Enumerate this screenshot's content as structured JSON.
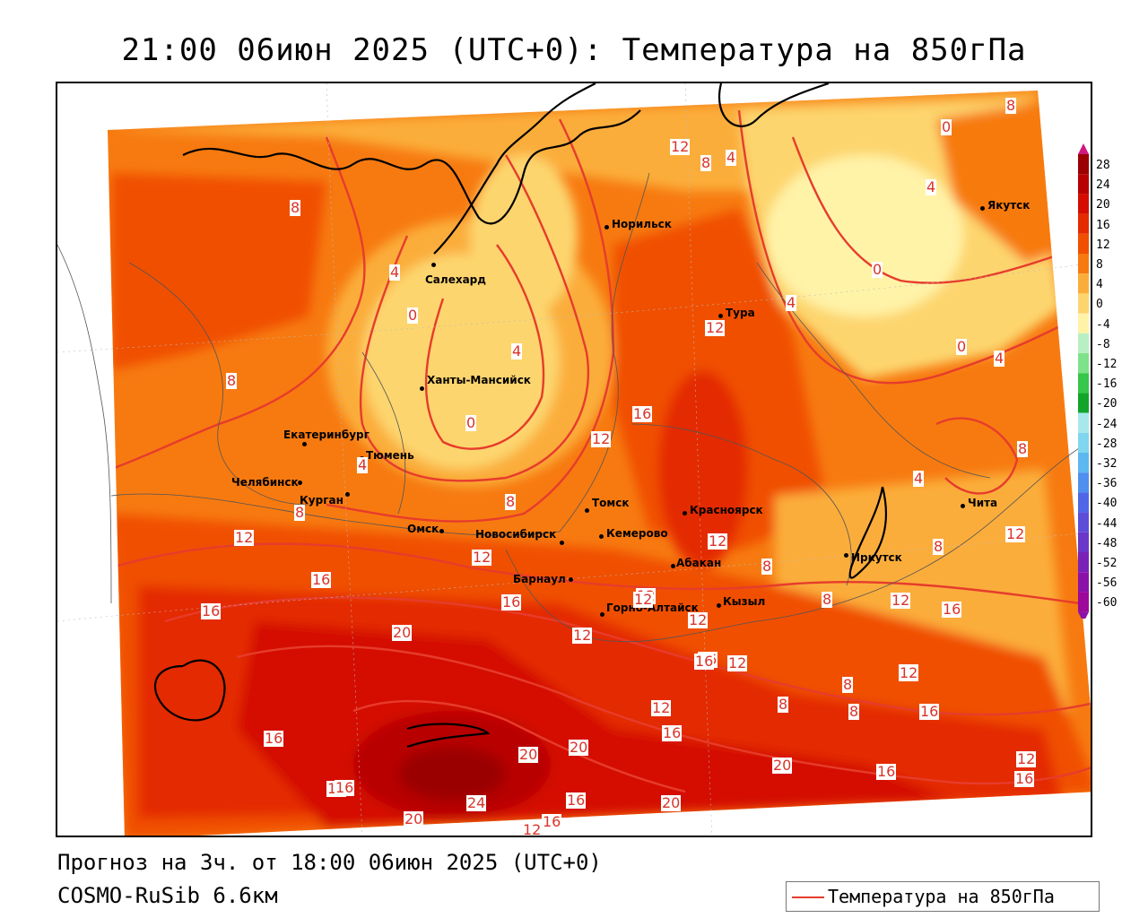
{
  "title": "21:00 06июн 2025 (UTC+0): Температура на 850гПа",
  "footer": {
    "forecast": "Прогноз на 3ч. от 18:00 06июн 2025 (UTC+0)",
    "model": "COSMO-RuSib 6.6км"
  },
  "legend": {
    "label": "Температура на 850гПа",
    "line_color": "#e63c2c"
  },
  "colorbar": {
    "labels": [
      "28",
      "24",
      "20",
      "16",
      "12",
      "8",
      "4",
      "0",
      "-4",
      "-8",
      "-12",
      "-16",
      "-20",
      "-24",
      "-28",
      "-32",
      "-36",
      "-40",
      "-44",
      "-48",
      "-52",
      "-56",
      "-60"
    ],
    "colors": [
      "#9b0000",
      "#b80000",
      "#d40d00",
      "#e42a00",
      "#f05000",
      "#f77a10",
      "#fbad3b",
      "#fdd56e",
      "#fff3a8",
      "#b9f0c3",
      "#7ee28b",
      "#37c74a",
      "#12a52a",
      "#a6e8ec",
      "#7fd6ee",
      "#5cb8f0",
      "#4f8ff0",
      "#4f66e6",
      "#5c4dd8",
      "#6a37c8",
      "#7a22b8",
      "#8a12a8",
      "#9c089a"
    ]
  },
  "cities": [
    {
      "name": "Норильск"
    },
    {
      "name": "Салехард"
    },
    {
      "name": "Тура"
    },
    {
      "name": "Якутск"
    },
    {
      "name": "Ханты-Мансийск"
    },
    {
      "name": "Екатеринбург"
    },
    {
      "name": "Тюмень"
    },
    {
      "name": "Челябинск"
    },
    {
      "name": "Курган"
    },
    {
      "name": "Омск"
    },
    {
      "name": "Новосибирск"
    },
    {
      "name": "Томск"
    },
    {
      "name": "Кемерово"
    },
    {
      "name": "Красноярск"
    },
    {
      "name": "Барнаул"
    },
    {
      "name": "Абакан"
    },
    {
      "name": "Иркутск"
    },
    {
      "name": "Чита"
    },
    {
      "name": "Горно-Алтайск"
    },
    {
      "name": "Кызыл"
    }
  ],
  "contour_labels": [
    "8",
    "12",
    "8",
    "4",
    "0",
    "4",
    "8",
    "4",
    "0",
    "0",
    "4",
    "12",
    "0",
    "4",
    "0",
    "4",
    "8",
    "16",
    "12",
    "4",
    "8",
    "12",
    "8",
    "8",
    "12",
    "12",
    "4",
    "16",
    "16",
    "12",
    "12",
    "20",
    "12",
    "16",
    "16",
    "16",
    "12",
    "16",
    "12",
    "8",
    "8",
    "8",
    "16",
    "12",
    "12",
    "20",
    "20",
    "16",
    "16",
    "16",
    "20",
    "24",
    "20",
    "16",
    "12",
    "20",
    "16",
    "12",
    "16",
    "8",
    "12",
    "12",
    "12",
    "12",
    "16",
    "8",
    "16",
    "8"
  ]
}
